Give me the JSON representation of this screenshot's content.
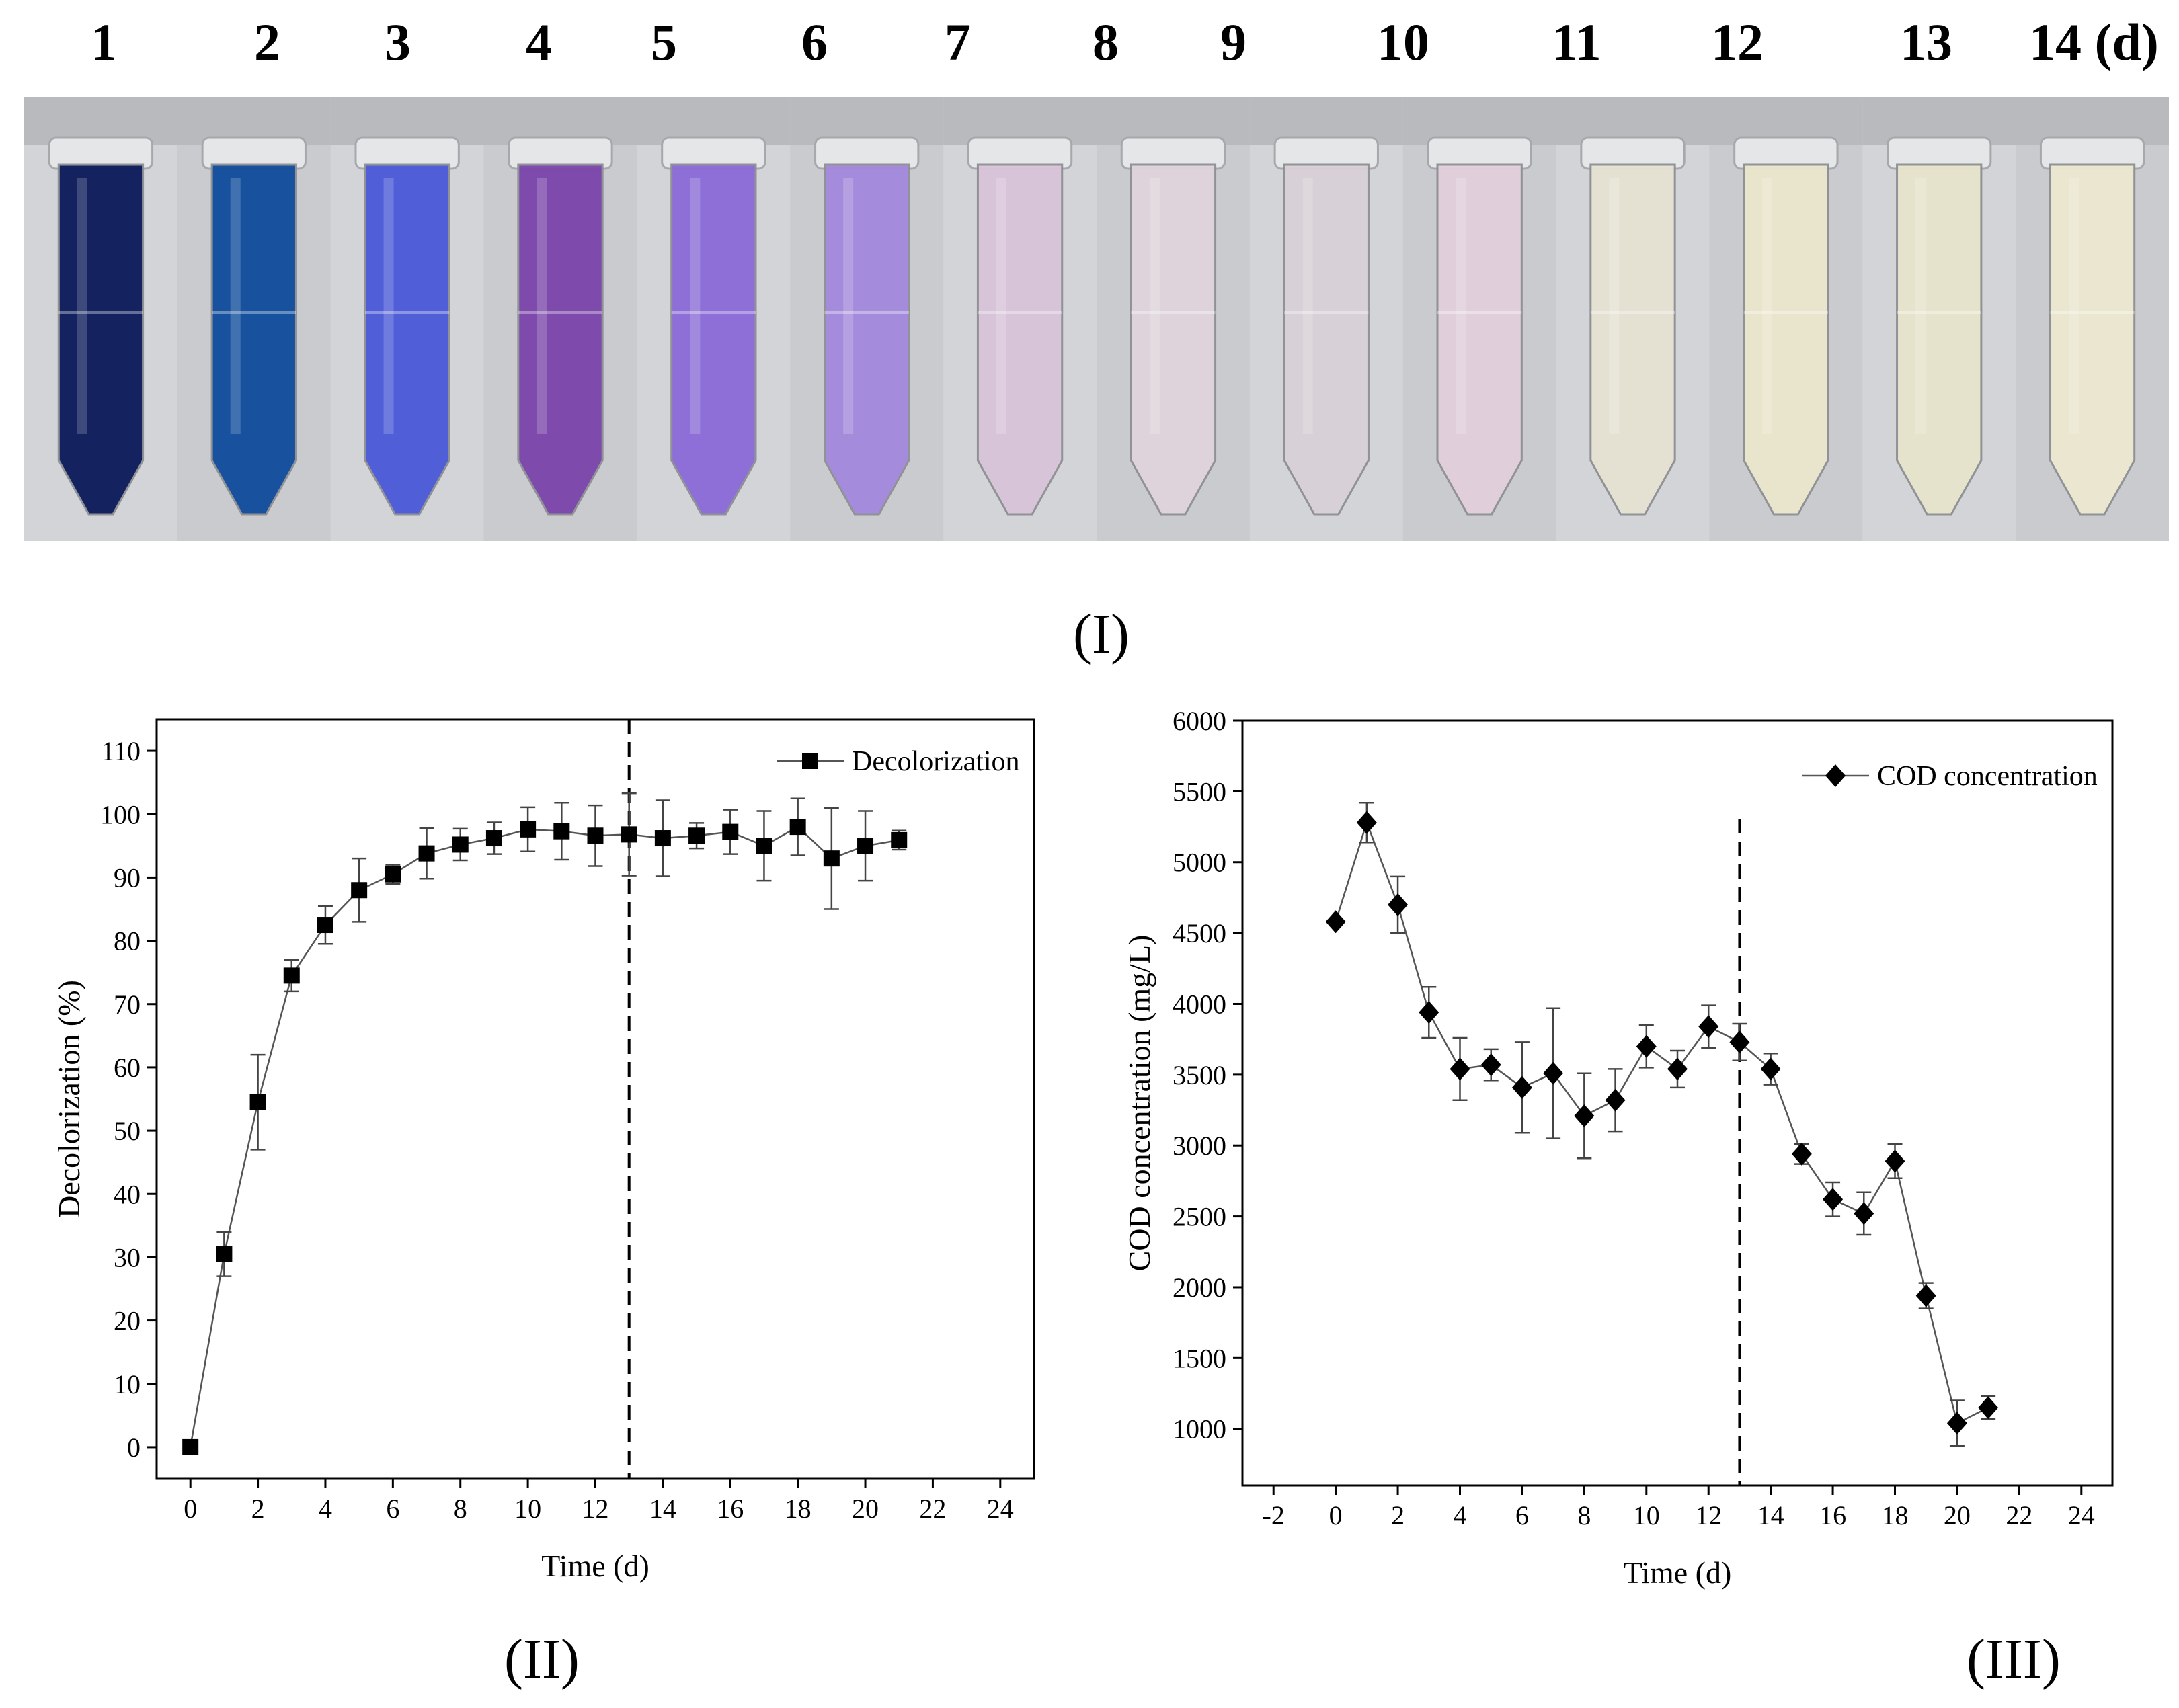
{
  "day_labels": [
    "1",
    "2",
    "3",
    "4",
    "5",
    "6",
    "7",
    "8",
    "9",
    "10",
    "11",
    "12",
    "13",
    "14 (d)"
  ],
  "tube_colors": [
    "#0a1a5a",
    "#0f4c9c",
    "#4a58d8",
    "#7a45ab",
    "#8a6ad8",
    "#a488dc",
    "#d8c4da",
    "#e0d4dc",
    "#d8d0d6",
    "#e2d0dc",
    "#e6e2d2",
    "#ebe6cc",
    "#e8e4cc",
    "#ece8cf"
  ],
  "panel_labels": {
    "one": "(I)",
    "two": "(II)",
    "three": "(III)"
  },
  "chart_data": [
    {
      "type": "scatter",
      "title": "",
      "xlabel": "Time (d)",
      "ylabel": "Decolorization (%)",
      "xlim": [
        -1,
        25
      ],
      "ylim": [
        -5,
        115
      ],
      "xticks": [
        0,
        2,
        4,
        6,
        8,
        10,
        12,
        14,
        16,
        18,
        20,
        22,
        24
      ],
      "yticks": [
        0,
        10,
        20,
        30,
        40,
        50,
        60,
        70,
        80,
        90,
        100,
        110
      ],
      "marker": "square",
      "legend": "Decolorization",
      "legend_position": "top-right",
      "vline_x": 13,
      "x": [
        0,
        1,
        2,
        3,
        4,
        5,
        6,
        7,
        8,
        9,
        10,
        11,
        12,
        13,
        14,
        15,
        16,
        17,
        18,
        19,
        20,
        21
      ],
      "y": [
        0,
        30.5,
        54.5,
        74.5,
        82.5,
        88,
        90.5,
        93.8,
        95.2,
        96.2,
        97.6,
        97.3,
        96.6,
        96.8,
        96.2,
        96.6,
        97.2,
        95,
        98,
        93,
        95,
        95.9
      ],
      "err": [
        0,
        3.5,
        7.5,
        2.5,
        3,
        5,
        1.5,
        4,
        2.5,
        2.5,
        3.5,
        4.5,
        4.8,
        6.5,
        6,
        2,
        3.5,
        5.5,
        4.5,
        8,
        5.5,
        1.5
      ]
    },
    {
      "type": "line",
      "title": "",
      "xlabel": "Time (d)",
      "ylabel": "COD concentration (mg/L)",
      "xlim": [
        -3,
        25
      ],
      "ylim": [
        600,
        6000
      ],
      "xticks": [
        -2,
        0,
        2,
        4,
        6,
        8,
        10,
        12,
        14,
        16,
        18,
        20,
        22,
        24
      ],
      "yticks": [
        1000,
        1500,
        2000,
        2500,
        3000,
        3500,
        4000,
        4500,
        5000,
        5500,
        6000
      ],
      "marker": "diamond",
      "legend": "COD concentration",
      "legend_position": "top-right",
      "vline_x": 13,
      "x": [
        0,
        1,
        2,
        3,
        4,
        5,
        6,
        7,
        8,
        9,
        10,
        11,
        12,
        13,
        14,
        15,
        16,
        17,
        18,
        19,
        20,
        21
      ],
      "y": [
        4580,
        5280,
        4700,
        3940,
        3540,
        3570,
        3410,
        3510,
        3210,
        3320,
        3700,
        3540,
        3840,
        3730,
        3540,
        2940,
        2620,
        2520,
        2890,
        1940,
        1040,
        1150
      ],
      "err": [
        0,
        140,
        200,
        180,
        220,
        110,
        320,
        460,
        300,
        220,
        150,
        130,
        150,
        130,
        110,
        70,
        120,
        150,
        120,
        90,
        160,
        80
      ]
    }
  ]
}
